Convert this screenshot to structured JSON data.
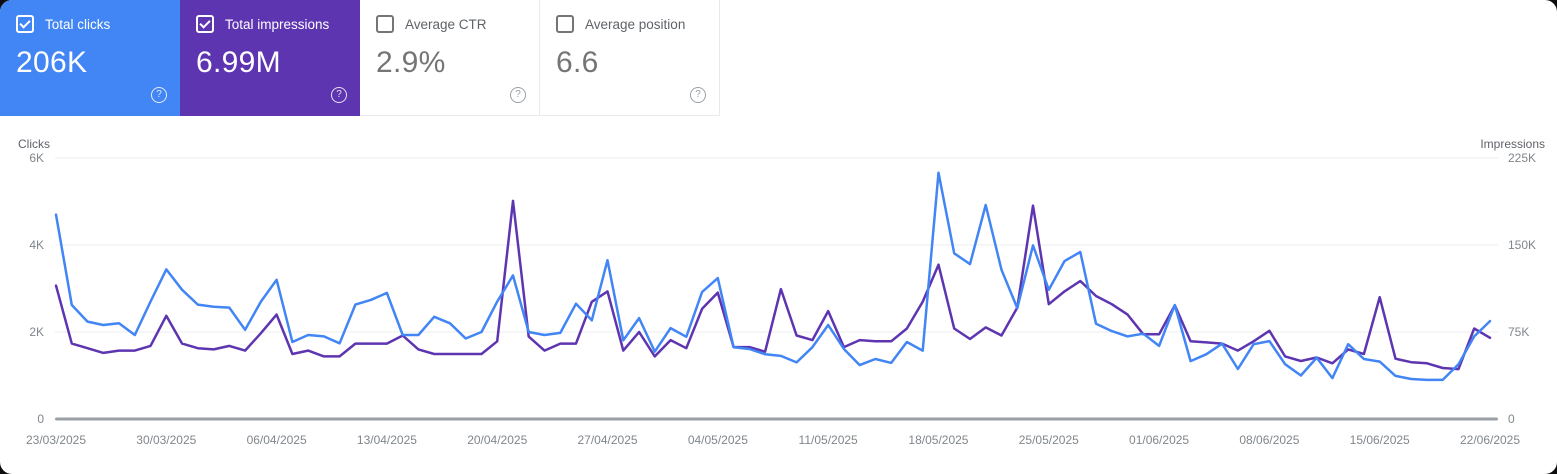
{
  "cards": [
    {
      "label": "Total clicks",
      "value": "206K",
      "checked": true,
      "bg": "#4285f4"
    },
    {
      "label": "Total impressions",
      "value": "6.99M",
      "checked": true,
      "bg": "#5e35b1"
    },
    {
      "label": "Average CTR",
      "value": "2.9%",
      "checked": false,
      "bg": "#ffffff"
    },
    {
      "label": "Average position",
      "value": "6.6",
      "checked": false,
      "bg": "#ffffff"
    }
  ],
  "help_icon": "?",
  "chart_data": {
    "type": "line",
    "grid": true,
    "legend": "none",
    "x_axis": {
      "tick_labels": [
        "23/03/2025",
        "30/03/2025",
        "06/04/2025",
        "13/04/2025",
        "20/04/2025",
        "27/04/2025",
        "04/05/2025",
        "11/05/2025",
        "18/05/2025",
        "25/05/2025",
        "01/06/2025",
        "08/06/2025",
        "15/06/2025",
        "22/06/2025"
      ],
      "tick_day_indices": [
        0,
        7,
        14,
        21,
        28,
        35,
        42,
        49,
        56,
        63,
        70,
        77,
        84,
        91
      ],
      "total_days": 92
    },
    "left_axis": {
      "label": "Clicks",
      "max": 6000,
      "tick_values": [
        0,
        2000,
        4000,
        6000
      ],
      "tick_labels": [
        "0",
        "2K",
        "4K",
        "6K"
      ]
    },
    "right_axis": {
      "label": "Impressions",
      "max": 225000,
      "tick_values": [
        0,
        75000,
        150000,
        225000
      ],
      "tick_labels": [
        "0",
        "75K",
        "150K",
        "225K"
      ]
    },
    "series": [
      {
        "name": "Total impressions",
        "axis": "right",
        "color": "#5e35b1",
        "values": [
          115000,
          65000,
          61000,
          57000,
          59000,
          59000,
          63000,
          89000,
          65000,
          61000,
          60000,
          63000,
          59000,
          74000,
          90000,
          56000,
          59000,
          54000,
          54000,
          65000,
          65000,
          65000,
          72000,
          60000,
          56000,
          56000,
          56000,
          56000,
          67000,
          188000,
          71000,
          59000,
          65000,
          65000,
          101000,
          110000,
          59000,
          75000,
          54000,
          68000,
          61000,
          95000,
          109000,
          62000,
          62000,
          58000,
          112000,
          72000,
          68000,
          93000,
          62000,
          68000,
          67000,
          67000,
          78000,
          101000,
          133000,
          78000,
          69000,
          79000,
          72000,
          96000,
          184000,
          99000,
          110000,
          119000,
          106000,
          99000,
          90000,
          73000,
          73000,
          98000,
          67000,
          66000,
          65000,
          59000,
          67000,
          76000,
          54000,
          50000,
          53000,
          48000,
          60000,
          56000,
          105000,
          52000,
          49000,
          48000,
          44000,
          43000,
          78000,
          70000
        ]
      },
      {
        "name": "Total clicks",
        "axis": "left",
        "color": "#4285f4",
        "values": [
          4700,
          2620,
          2240,
          2160,
          2200,
          1930,
          2700,
          3440,
          2970,
          2630,
          2580,
          2560,
          2050,
          2700,
          3200,
          1770,
          1930,
          1900,
          1740,
          2630,
          2740,
          2900,
          1930,
          1930,
          2350,
          2200,
          1850,
          2000,
          2700,
          3300,
          2000,
          1930,
          1980,
          2650,
          2270,
          3650,
          1810,
          2320,
          1550,
          2090,
          1890,
          2920,
          3240,
          1650,
          1610,
          1490,
          1450,
          1300,
          1650,
          2160,
          1610,
          1240,
          1380,
          1290,
          1770,
          1570,
          5660,
          3810,
          3560,
          4920,
          3430,
          2550,
          3990,
          2970,
          3630,
          3840,
          2190,
          2020,
          1900,
          1960,
          1680,
          2620,
          1330,
          1490,
          1730,
          1150,
          1720,
          1790,
          1260,
          1000,
          1410,
          940,
          1720,
          1380,
          1320,
          990,
          920,
          900,
          900,
          1260,
          1900,
          2250
        ]
      }
    ]
  }
}
